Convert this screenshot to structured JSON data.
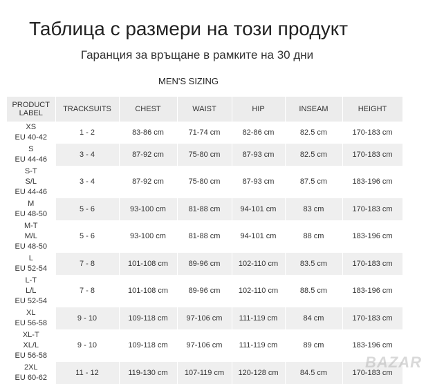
{
  "header": {
    "title": "Таблица с размери на този продукт",
    "subtitle": "Гаранция за връщане в рамките на 30 дни"
  },
  "table": {
    "caption": "MEN'S SIZING",
    "columns": [
      "PRODUCT LABEL",
      "TRACKSUITS",
      "CHEST",
      "WAIST",
      "HIP",
      "INSEAM",
      "HEIGHT"
    ],
    "rows": [
      {
        "label": [
          "XS",
          "EU 40-42"
        ],
        "cells": [
          "1 - 2",
          "83-86 cm",
          "71-74 cm",
          "82-86 cm",
          "82.5 cm",
          "170-183 cm"
        ]
      },
      {
        "label": [
          "S",
          "EU 44-46"
        ],
        "cells": [
          "3 - 4",
          "87-92 cm",
          "75-80 cm",
          "87-93 cm",
          "82.5 cm",
          "170-183 cm"
        ]
      },
      {
        "label": [
          "S-T",
          "S/L",
          "EU 44-46"
        ],
        "cells": [
          "3 - 4",
          "87-92 cm",
          "75-80 cm",
          "87-93 cm",
          "87.5 cm",
          "183-196 cm"
        ]
      },
      {
        "label": [
          "M",
          "EU 48-50"
        ],
        "cells": [
          "5 - 6",
          "93-100 cm",
          "81-88 cm",
          "94-101 cm",
          "83 cm",
          "170-183 cm"
        ]
      },
      {
        "label": [
          "M-T",
          "M/L",
          "EU 48-50"
        ],
        "cells": [
          "5 - 6",
          "93-100 cm",
          "81-88 cm",
          "94-101 cm",
          "88 cm",
          "183-196 cm"
        ]
      },
      {
        "label": [
          "L",
          "EU 52-54"
        ],
        "cells": [
          "7 - 8",
          "101-108 cm",
          "89-96 cm",
          "102-110 cm",
          "83.5 cm",
          "170-183 cm"
        ]
      },
      {
        "label": [
          "L-T",
          "L/L",
          "EU 52-54"
        ],
        "cells": [
          "7 - 8",
          "101-108 cm",
          "89-96 cm",
          "102-110 cm",
          "88.5 cm",
          "183-196 cm"
        ]
      },
      {
        "label": [
          "XL",
          "EU 56-58"
        ],
        "cells": [
          "9 - 10",
          "109-118 cm",
          "97-106 cm",
          "111-119 cm",
          "84 cm",
          "170-183 cm"
        ]
      },
      {
        "label": [
          "XL-T",
          "XL/L",
          "EU 56-58"
        ],
        "cells": [
          "9 - 10",
          "109-118 cm",
          "97-106 cm",
          "111-119 cm",
          "89 cm",
          "183-196 cm"
        ]
      },
      {
        "label": [
          "2XL",
          "EU 60-62"
        ],
        "cells": [
          "11 - 12",
          "119-130 cm",
          "107-119 cm",
          "120-128 cm",
          "84.5 cm",
          "170-183 cm"
        ]
      }
    ]
  },
  "watermark": "BAZAR"
}
